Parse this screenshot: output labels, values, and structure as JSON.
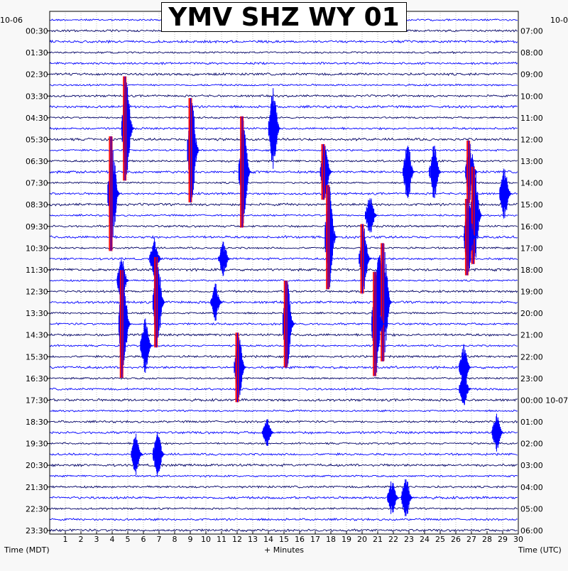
{
  "title": "YMV SHZ WY 01",
  "start_date_left": "10-06",
  "start_date_right": "10-0",
  "x_axis_label": "+ Minutes",
  "left_axis_label": "Time (MDT)",
  "right_axis_label": "Time (UTC)",
  "colors": {
    "dark_trace": "#000066",
    "blue_trace": "#0000ff",
    "clip_red": "#ff0000",
    "background": "#ffffff"
  },
  "chart_data": {
    "type": "helicorder",
    "xlim": [
      0,
      30
    ],
    "x_ticks": [
      "1",
      "2",
      "3",
      "4",
      "5",
      "6",
      "7",
      "8",
      "9",
      "10",
      "11",
      "12",
      "13",
      "14",
      "15",
      "16",
      "17",
      "18",
      "19",
      "20",
      "21",
      "22",
      "23",
      "24",
      "25",
      "26",
      "27",
      "28",
      "29",
      "30"
    ],
    "left_labels": [
      "00:30",
      "01:30",
      "02:30",
      "03:30",
      "04:30",
      "05:30",
      "06:30",
      "07:30",
      "08:30",
      "09:30",
      "10:30",
      "11:30",
      "12:30",
      "13:30",
      "14:30",
      "15:30",
      "16:30",
      "17:30",
      "18:30",
      "19:30",
      "20:30",
      "21:30",
      "22:30",
      "23:30"
    ],
    "right_labels": [
      "07:00",
      "08:00",
      "09:00",
      "10:00",
      "11:00",
      "12:00",
      "13:00",
      "14:00",
      "15:00",
      "16:00",
      "17:00",
      "18:00",
      "19:00",
      "20:00",
      "21:00",
      "22:00",
      "23:00",
      "00:00 10-07",
      "01:00",
      "02:00",
      "03:00",
      "04:00",
      "05:00",
      "06:00"
    ],
    "traces_per_label": 2,
    "events": [
      {
        "hour": 5,
        "minute": 4.8,
        "amplitude": 3.0,
        "clipped": true
      },
      {
        "hour": 5,
        "minute": 14.2,
        "amplitude": 2.6,
        "clipped": false
      },
      {
        "hour": 6,
        "minute": 9.0,
        "amplitude": 3.0,
        "clipped": true
      },
      {
        "hour": 7,
        "minute": 12.3,
        "amplitude": 3.2,
        "clipped": true
      },
      {
        "hour": 7,
        "minute": 17.5,
        "amplitude": 1.6,
        "clipped": true
      },
      {
        "hour": 7,
        "minute": 22.8,
        "amplitude": 1.8,
        "clipped": false
      },
      {
        "hour": 7,
        "minute": 24.5,
        "amplitude": 1.6,
        "clipped": false
      },
      {
        "hour": 7,
        "minute": 26.8,
        "amplitude": 1.8,
        "clipped": true
      },
      {
        "hour": 8,
        "minute": 3.9,
        "amplitude": 3.3,
        "clipped": true
      },
      {
        "hour": 8,
        "minute": 29.0,
        "amplitude": 1.5,
        "clipped": false
      },
      {
        "hour": 9,
        "minute": 20.4,
        "amplitude": 1.2,
        "clipped": false
      },
      {
        "hour": 9,
        "minute": 27.1,
        "amplitude": 2.8,
        "clipped": true
      },
      {
        "hour": 10,
        "minute": 17.8,
        "amplitude": 3.0,
        "clipped": true
      },
      {
        "hour": 10,
        "minute": 26.7,
        "amplitude": 2.2,
        "clipped": true
      },
      {
        "hour": 11,
        "minute": 6.6,
        "amplitude": 1.2,
        "clipped": false
      },
      {
        "hour": 11,
        "minute": 11.0,
        "amplitude": 1.0,
        "clipped": false
      },
      {
        "hour": 11,
        "minute": 20.0,
        "amplitude": 2.0,
        "clipped": true
      },
      {
        "hour": 12,
        "minute": 4.5,
        "amplitude": 1.4,
        "clipped": false
      },
      {
        "hour": 12,
        "minute": 21.0,
        "amplitude": 1.5,
        "clipped": false
      },
      {
        "hour": 13,
        "minute": 6.8,
        "amplitude": 2.6,
        "clipped": true
      },
      {
        "hour": 13,
        "minute": 10.5,
        "amplitude": 1.1,
        "clipped": false
      },
      {
        "hour": 13,
        "minute": 21.3,
        "amplitude": 3.4,
        "clipped": true
      },
      {
        "hour": 14,
        "minute": 4.6,
        "amplitude": 3.1,
        "clipped": true
      },
      {
        "hour": 14,
        "minute": 15.1,
        "amplitude": 2.5,
        "clipped": true
      },
      {
        "hour": 14,
        "minute": 20.8,
        "amplitude": 3.0,
        "clipped": true
      },
      {
        "hour": 15,
        "minute": 6.0,
        "amplitude": 1.6,
        "clipped": false
      },
      {
        "hour": 16,
        "minute": 12.0,
        "amplitude": 2.0,
        "clipped": true
      },
      {
        "hour": 16,
        "minute": 26.4,
        "amplitude": 1.4,
        "clipped": false
      },
      {
        "hour": 17,
        "minute": 26.4,
        "amplitude": 1.0,
        "clipped": false
      },
      {
        "hour": 19,
        "minute": 28.5,
        "amplitude": 1.1,
        "clipped": false
      },
      {
        "hour": 19,
        "minute": 13.8,
        "amplitude": 0.8,
        "clipped": false
      },
      {
        "hour": 20,
        "minute": 5.4,
        "amplitude": 1.2,
        "clipped": false
      },
      {
        "hour": 20,
        "minute": 6.8,
        "amplitude": 1.3,
        "clipped": false
      },
      {
        "hour": 22,
        "minute": 21.8,
        "amplitude": 1.0,
        "clipped": false
      },
      {
        "hour": 22,
        "minute": 22.7,
        "amplitude": 1.3,
        "clipped": false
      }
    ]
  }
}
